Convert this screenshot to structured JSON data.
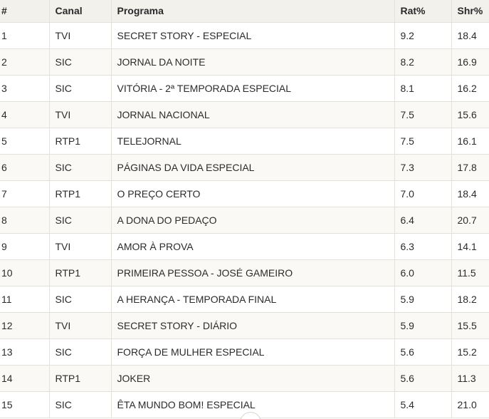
{
  "table": {
    "headers": {
      "rank": "#",
      "canal": "Canal",
      "programa": "Programa",
      "rat": "Rat%",
      "shr": "Shr%"
    },
    "rows": [
      {
        "rank": "1",
        "canal": "TVI",
        "programa": "SECRET STORY - ESPECIAL",
        "rat": "9.2",
        "shr": "18.4"
      },
      {
        "rank": "2",
        "canal": "SIC",
        "programa": "JORNAL DA NOITE",
        "rat": "8.2",
        "shr": "16.9"
      },
      {
        "rank": "3",
        "canal": "SIC",
        "programa": "VITÓRIA - 2ª TEMPORADA ESPECIAL",
        "rat": "8.1",
        "shr": "16.2"
      },
      {
        "rank": "4",
        "canal": "TVI",
        "programa": "JORNAL NACIONAL",
        "rat": "7.5",
        "shr": "15.6"
      },
      {
        "rank": "5",
        "canal": "RTP1",
        "programa": "TELEJORNAL",
        "rat": "7.5",
        "shr": "16.1"
      },
      {
        "rank": "6",
        "canal": "SIC",
        "programa": "PÁGINAS DA VIDA ESPECIAL",
        "rat": "7.3",
        "shr": "17.8"
      },
      {
        "rank": "7",
        "canal": "RTP1",
        "programa": "O PREÇO CERTO",
        "rat": "7.0",
        "shr": "18.4"
      },
      {
        "rank": "8",
        "canal": "SIC",
        "programa": "A DONA DO PEDAÇO",
        "rat": "6.4",
        "shr": "20.7"
      },
      {
        "rank": "9",
        "canal": "TVI",
        "programa": "AMOR À PROVA",
        "rat": "6.3",
        "shr": "14.1"
      },
      {
        "rank": "10",
        "canal": "RTP1",
        "programa": "PRIMEIRA PESSOA - JOSÉ GAMEIRO",
        "rat": "6.0",
        "shr": "11.5"
      },
      {
        "rank": "11",
        "canal": "SIC",
        "programa": "A HERANÇA - TEMPORADA FINAL",
        "rat": "5.9",
        "shr": "18.2"
      },
      {
        "rank": "12",
        "canal": "TVI",
        "programa": "SECRET STORY - DIÁRIO",
        "rat": "5.9",
        "shr": "15.5"
      },
      {
        "rank": "13",
        "canal": "SIC",
        "programa": "FORÇA DE MULHER ESPECIAL",
        "rat": "5.6",
        "shr": "15.2"
      },
      {
        "rank": "14",
        "canal": "RTP1",
        "programa": "JOKER",
        "rat": "5.6",
        "shr": "11.3"
      },
      {
        "rank": "15",
        "canal": "SIC",
        "programa": "ÊTA MUNDO BOM! ESPECIAL",
        "rat": "5.4",
        "shr": "21.0"
      }
    ]
  },
  "scroll_button": {
    "icon": "chevron-down-icon"
  }
}
